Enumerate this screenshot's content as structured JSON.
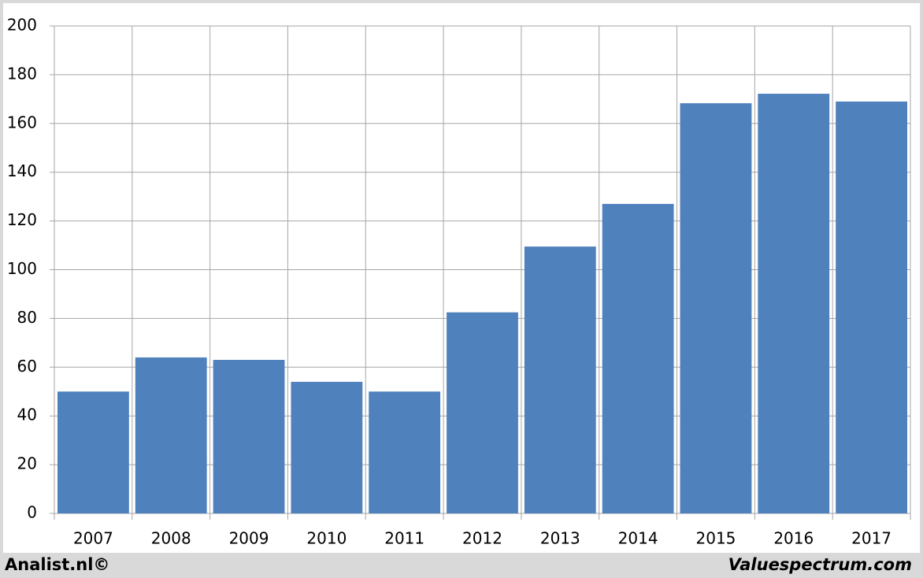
{
  "chart_data": {
    "type": "bar",
    "categories": [
      "2007",
      "2008",
      "2009",
      "2010",
      "2011",
      "2012",
      "2013",
      "2014",
      "2015",
      "2016",
      "2017"
    ],
    "values": [
      50,
      64,
      63,
      54,
      50,
      82.5,
      109.5,
      127,
      168.3,
      172.2,
      169
    ],
    "color": "#4f81bd",
    "ylim": [
      0,
      200
    ],
    "yticks": [
      0,
      20,
      40,
      60,
      80,
      100,
      120,
      140,
      160,
      180,
      200
    ],
    "grid": true,
    "annotations": [
      "Analist.nl©",
      "Valuespectrum.com"
    ]
  }
}
